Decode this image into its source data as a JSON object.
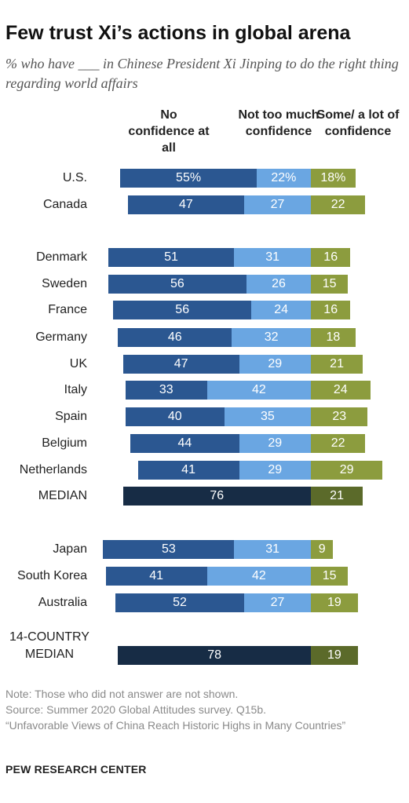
{
  "title": "Few trust Xi’s actions in global arena",
  "subtitle": "% who have ___ in Chinese President Xi Jinping to do the right thing regarding world affairs",
  "column_headers": {
    "no_confidence": "No confidence at all",
    "not_too_much": "Not too much confidence",
    "some_lot": "Some/ a lot of confidence"
  },
  "notes": {
    "note": "Note: Those who did not answer are not shown.",
    "source": "Source: Summer 2020 Global Attitudes survey. Q15b.",
    "report": "“Unfavorable Views of China Reach Historic Highs in Many Countries”"
  },
  "brand": "PEW RESEARCH CENTER",
  "colors": {
    "no_confidence": "#2b5791",
    "not_too_much": "#6aa6e2",
    "some_lot": "#8c9c3e",
    "median_no": "#172c45",
    "median_some": "#5b6a2a"
  },
  "chart_data": {
    "type": "bar",
    "orientation": "horizontal",
    "stacking": "diverging",
    "series": [
      {
        "name": "No confidence at all",
        "values": [
          55,
          47,
          51,
          56,
          56,
          46,
          47,
          33,
          40,
          44,
          41,
          null,
          53,
          41,
          52,
          null
        ]
      },
      {
        "name": "Not too much confidence",
        "values": [
          22,
          27,
          31,
          26,
          24,
          32,
          29,
          42,
          35,
          29,
          29,
          null,
          31,
          42,
          27,
          null
        ]
      },
      {
        "name": "Some/a lot of confidence",
        "values": [
          18,
          22,
          16,
          15,
          16,
          18,
          21,
          24,
          23,
          22,
          29,
          21,
          9,
          15,
          19,
          19
        ]
      }
    ],
    "categories": [
      "U.S.",
      "Canada",
      "Denmark",
      "Sweden",
      "France",
      "Germany",
      "UK",
      "Italy",
      "Spain",
      "Belgium",
      "Netherlands",
      "MEDIAN",
      "Japan",
      "South Korea",
      "Australia",
      "14-COUNTRY MEDIAN"
    ],
    "no_confidence_combined": [
      null,
      null,
      null,
      null,
      null,
      null,
      null,
      null,
      null,
      null,
      null,
      76,
      null,
      null,
      null,
      78
    ],
    "value_labels": [
      [
        "55%",
        "22%",
        "18%"
      ],
      [
        "47",
        "27",
        "22"
      ],
      [
        "51",
        "31",
        "16"
      ],
      [
        "56",
        "26",
        "15"
      ],
      [
        "56",
        "24",
        "16"
      ],
      [
        "46",
        "32",
        "18"
      ],
      [
        "47",
        "29",
        "21"
      ],
      [
        "33",
        "42",
        "24"
      ],
      [
        "40",
        "35",
        "23"
      ],
      [
        "44",
        "29",
        "22"
      ],
      [
        "41",
        "29",
        "29"
      ],
      [
        "76",
        "",
        "21"
      ],
      [
        "53",
        "31",
        "9"
      ],
      [
        "41",
        "42",
        "15"
      ],
      [
        "52",
        "27",
        "19"
      ],
      [
        "78",
        "",
        "19"
      ]
    ]
  }
}
